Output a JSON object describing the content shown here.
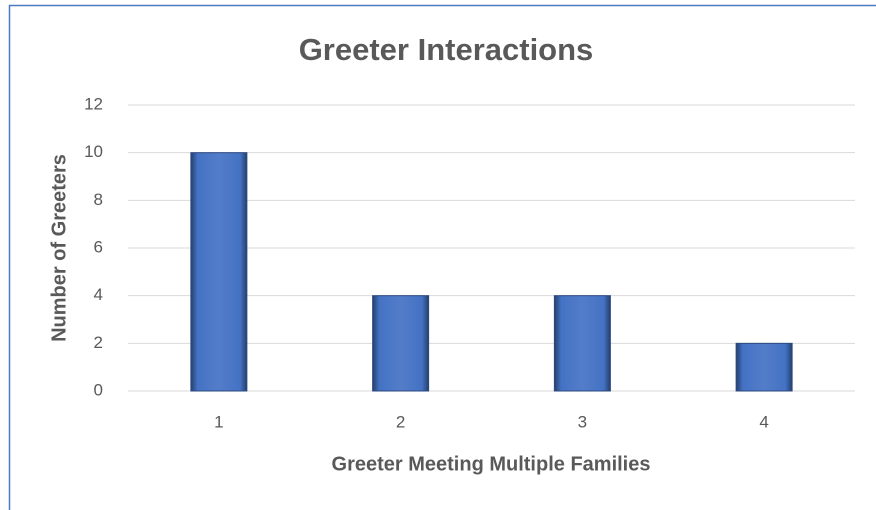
{
  "chart_data": {
    "type": "bar",
    "title": "Greeter Interactions",
    "x_label": "Greeter Meeting Multiple Families",
    "y_label": "Number of Greeters",
    "categories": [
      "1",
      "2",
      "3",
      "4"
    ],
    "values": [
      10,
      4,
      4,
      2
    ],
    "color": "#4472c4",
    "ylim": [
      0,
      12
    ],
    "yticks": [
      0,
      2,
      4,
      6,
      8,
      10,
      12
    ],
    "grid": true
  }
}
